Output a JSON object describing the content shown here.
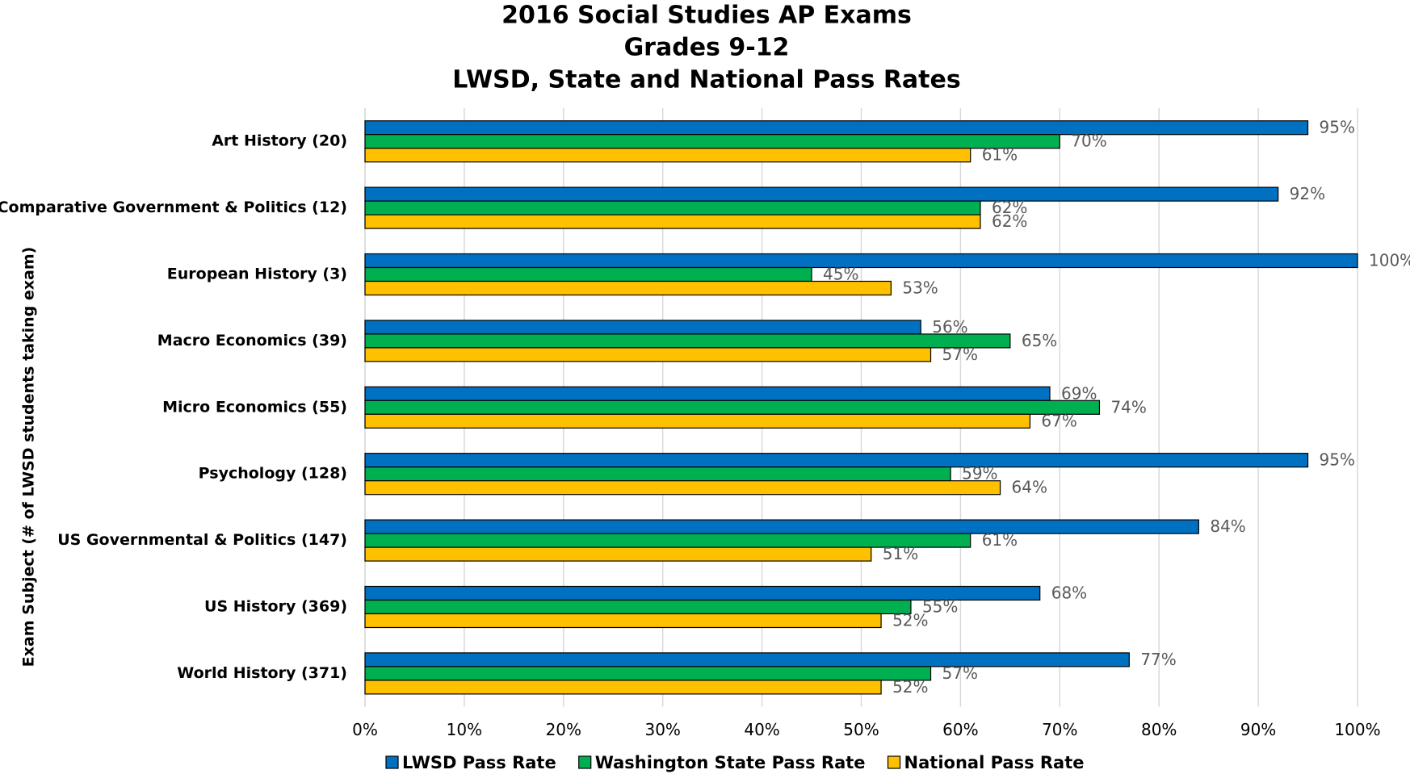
{
  "chart_data": {
    "type": "bar",
    "orientation": "horizontal",
    "title": [
      "2016 Social Studies AP Exams",
      "Grades 9-12",
      "LWSD, State and National Pass Rates"
    ],
    "y_axis_label": "Exam Subject (# of LWSD students taking exam)",
    "categories": [
      "Art History (20)",
      "Comparative Government & Politics (12)",
      "European History (3)",
      "Macro Economics (39)",
      "Micro Economics (55)",
      "Psychology (128)",
      "US Governmental & Politics (147)",
      "US History (369)",
      "World History (371)"
    ],
    "series": [
      {
        "name": "LWSD Pass Rate",
        "color": "#0070c0",
        "values": [
          95,
          92,
          100,
          56,
          69,
          95,
          84,
          68,
          77
        ],
        "value_labels": [
          "95%",
          "92%",
          "100%",
          "56%",
          "69%",
          "95%",
          "84%",
          "68%",
          "77%"
        ]
      },
      {
        "name": "Washington State Pass Rate",
        "color": "#00b050",
        "values": [
          70,
          62,
          45,
          65,
          74,
          59,
          61,
          55,
          57
        ],
        "value_labels": [
          "70%",
          "62%",
          "45%",
          "65%",
          "74%",
          "59%",
          "61%",
          "55%",
          "57%"
        ]
      },
      {
        "name": "National Pass Rate",
        "color": "#ffc000",
        "values": [
          61,
          62,
          53,
          57,
          67,
          64,
          51,
          52,
          52
        ],
        "value_labels": [
          "61%",
          "62%",
          "53%",
          "57%",
          "67%",
          "64%",
          "51%",
          "52%",
          "52%"
        ]
      }
    ],
    "xlim": [
      0,
      100
    ],
    "xticks": [
      {
        "value": 0,
        "label": "0%"
      },
      {
        "value": 10,
        "label": "10%"
      },
      {
        "value": 20,
        "label": "20%"
      },
      {
        "value": 30,
        "label": "30%"
      },
      {
        "value": 40,
        "label": "40%"
      },
      {
        "value": 50,
        "label": "50%"
      },
      {
        "value": 60,
        "label": "60%"
      },
      {
        "value": 70,
        "label": "70%"
      },
      {
        "value": 80,
        "label": "80%"
      },
      {
        "value": 90,
        "label": "90%"
      },
      {
        "value": 100,
        "label": "100%"
      }
    ],
    "grid": true,
    "legend": "bottom"
  }
}
